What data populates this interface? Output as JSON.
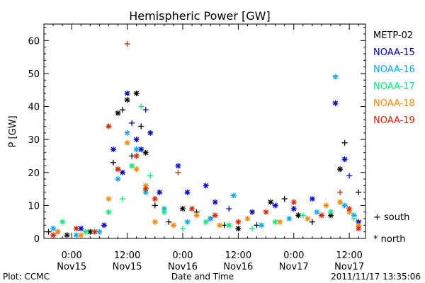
{
  "chart_data": {
    "type": "scatter",
    "title": "Hemispheric Power [GW]",
    "xlabel": "Date and Time",
    "ylabel": "P [GW]",
    "x_unit": "hours since 2011-11-14 18:00 UT",
    "xlim": [
      0,
      69.5
    ],
    "ylim": [
      0,
      65
    ],
    "y_ticks": [
      0,
      10,
      20,
      30,
      40,
      50,
      60
    ],
    "x_ticks": [
      {
        "x": 6,
        "label": "0:00",
        "sublabel": "Nov15"
      },
      {
        "x": 18,
        "label": "12:00",
        "sublabel": "Nov15"
      },
      {
        "x": 30,
        "label": "0:00",
        "sublabel": "Nov16"
      },
      {
        "x": 42,
        "label": "12:00",
        "sublabel": "Nov16"
      },
      {
        "x": 54,
        "label": "0:00",
        "sublabel": "Nov17"
      },
      {
        "x": 66,
        "label": "12:00",
        "sublabel": "Nov17"
      }
    ],
    "grid": false,
    "legend_position": "right",
    "hemisphere_legend": [
      {
        "symbol": "+",
        "label": "south"
      },
      {
        "symbol": "*",
        "label": "north"
      }
    ],
    "series": [
      {
        "name": "METP-02",
        "color": "#000000",
        "points": [
          [
            1,
            2,
            "+"
          ],
          [
            5,
            1,
            "*"
          ],
          [
            10,
            2,
            "*"
          ],
          [
            15,
            23,
            "+"
          ],
          [
            16,
            38,
            "*"
          ],
          [
            17,
            39,
            "+"
          ],
          [
            18,
            42,
            "*"
          ],
          [
            19,
            25,
            "+"
          ],
          [
            20,
            44,
            "*"
          ],
          [
            21,
            34,
            "+"
          ],
          [
            22,
            26,
            "*"
          ],
          [
            24,
            10,
            "+"
          ],
          [
            27,
            5,
            "+"
          ],
          [
            30,
            9,
            "*"
          ],
          [
            33,
            8,
            "+"
          ],
          [
            36,
            6,
            "*"
          ],
          [
            39,
            4,
            "+"
          ],
          [
            42,
            3,
            "*"
          ],
          [
            46,
            4,
            "+"
          ],
          [
            49,
            11,
            "*"
          ],
          [
            52,
            12,
            "+"
          ],
          [
            55,
            7,
            "*"
          ],
          [
            58,
            5,
            "+"
          ],
          [
            62,
            7,
            "*"
          ],
          [
            64,
            21,
            "*"
          ],
          [
            65,
            29,
            "+"
          ],
          [
            68,
            14,
            "+"
          ]
        ]
      },
      {
        "name": "NOAA-15",
        "color": "#0000cc",
        "points": [
          [
            3,
            2,
            "*"
          ],
          [
            8,
            3,
            "*"
          ],
          [
            13,
            4,
            "*"
          ],
          [
            15,
            27,
            "*"
          ],
          [
            17,
            20,
            "*"
          ],
          [
            18,
            44,
            "*"
          ],
          [
            19,
            35,
            "+"
          ],
          [
            20,
            30,
            "*"
          ],
          [
            21,
            27,
            "*"
          ],
          [
            22,
            39,
            "+"
          ],
          [
            23,
            32,
            "*"
          ],
          [
            25,
            14,
            "*"
          ],
          [
            29,
            22,
            "*"
          ],
          [
            31,
            14,
            "*"
          ],
          [
            35,
            16,
            "*"
          ],
          [
            37,
            11,
            "*"
          ],
          [
            40,
            9,
            "+"
          ],
          [
            45,
            8,
            "*"
          ],
          [
            50,
            10,
            "*"
          ],
          [
            54,
            9,
            "*"
          ],
          [
            58,
            12,
            "*"
          ],
          [
            63,
            41,
            "*"
          ],
          [
            65,
            24,
            "*"
          ],
          [
            66,
            19,
            "+"
          ],
          [
            68,
            5,
            "*"
          ]
        ]
      },
      {
        "name": "NOAA-16",
        "color": "#00aaff",
        "points": [
          [
            2,
            3,
            "*"
          ],
          [
            7,
            1,
            "*"
          ],
          [
            12,
            2,
            "*"
          ],
          [
            16,
            18,
            "*"
          ],
          [
            18,
            32,
            "*"
          ],
          [
            20,
            27,
            "*"
          ],
          [
            22,
            14,
            "*"
          ],
          [
            26,
            9,
            "*"
          ],
          [
            31,
            5,
            "*"
          ],
          [
            36,
            6,
            "*"
          ],
          [
            41,
            13,
            "*"
          ],
          [
            47,
            4,
            "*"
          ],
          [
            53,
            6,
            "*"
          ],
          [
            59,
            8,
            "*"
          ],
          [
            63,
            49,
            "*"
          ],
          [
            65,
            10,
            "*"
          ],
          [
            67,
            7,
            "*"
          ]
        ]
      },
      {
        "name": "NOAA-17",
        "color": "#00ee77",
        "points": [
          [
            4,
            5,
            "*"
          ],
          [
            9,
            2,
            "*"
          ],
          [
            14,
            8,
            "*"
          ],
          [
            17,
            12,
            "+"
          ],
          [
            19,
            22,
            "*"
          ],
          [
            21,
            40,
            "+"
          ],
          [
            23,
            19,
            "+"
          ],
          [
            26,
            8,
            "*"
          ],
          [
            30,
            3,
            "+"
          ],
          [
            35,
            5,
            "*"
          ],
          [
            40,
            4,
            "*"
          ],
          [
            45,
            3,
            "+"
          ],
          [
            50,
            5,
            "*"
          ],
          [
            56,
            7,
            "+"
          ],
          [
            62,
            8,
            "*"
          ],
          [
            64,
            11,
            "*"
          ],
          [
            67,
            6,
            "+"
          ]
        ]
      },
      {
        "name": "NOAA-18",
        "color": "#ff8800",
        "points": [
          [
            3,
            2,
            "*"
          ],
          [
            8,
            1,
            "*"
          ],
          [
            14,
            12,
            "*"
          ],
          [
            16,
            21,
            "*"
          ],
          [
            18,
            29,
            "*"
          ],
          [
            20,
            21,
            "*"
          ],
          [
            22,
            16,
            "*"
          ],
          [
            24,
            5,
            "*"
          ],
          [
            28,
            4,
            "*"
          ],
          [
            33,
            7,
            "*"
          ],
          [
            38,
            4,
            "*"
          ],
          [
            44,
            6,
            "*"
          ],
          [
            51,
            5,
            "*"
          ],
          [
            57,
            6,
            "*"
          ],
          [
            61,
            10,
            "*"
          ],
          [
            64,
            11,
            "*"
          ],
          [
            66,
            8,
            "*"
          ],
          [
            68,
            4,
            "*"
          ]
        ]
      },
      {
        "name": "NOAA-19",
        "color": "#dd2200",
        "points": [
          [
            2,
            1,
            "*"
          ],
          [
            7,
            3,
            "*"
          ],
          [
            11,
            2,
            "*"
          ],
          [
            14,
            34,
            "*"
          ],
          [
            16,
            21,
            "*"
          ],
          [
            18,
            59,
            "+"
          ],
          [
            20,
            25,
            "*"
          ],
          [
            22,
            15,
            "*"
          ],
          [
            24,
            12,
            "*"
          ],
          [
            29,
            20,
            "+"
          ],
          [
            32,
            9,
            "*"
          ],
          [
            37,
            7,
            "*"
          ],
          [
            42,
            5,
            "*"
          ],
          [
            48,
            8,
            "*"
          ],
          [
            54,
            11,
            "*"
          ],
          [
            60,
            7,
            "*"
          ],
          [
            64,
            14,
            "+"
          ],
          [
            66,
            9,
            "*"
          ],
          [
            68,
            3,
            "*"
          ]
        ]
      }
    ]
  },
  "footer": {
    "left": "Plot: CCMC",
    "center": "Date and Time",
    "right": "2011/11/17 13:35:06"
  }
}
